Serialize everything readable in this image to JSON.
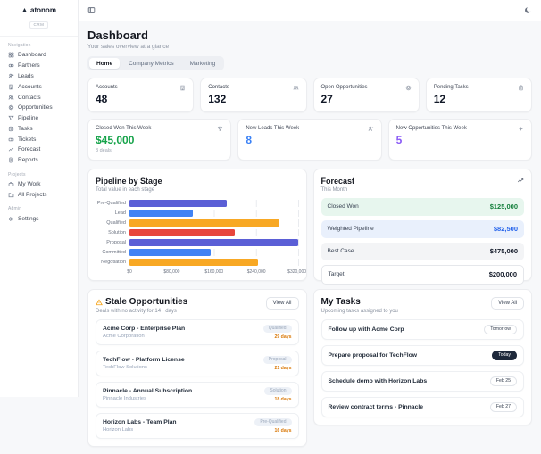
{
  "brand": {
    "name": "atonom",
    "tag": "CRM"
  },
  "sidebar": {
    "sections": [
      {
        "label": "Navigation",
        "items": [
          {
            "label": "Dashboard"
          },
          {
            "label": "Partners"
          },
          {
            "label": "Leads"
          },
          {
            "label": "Accounts"
          },
          {
            "label": "Contacts"
          },
          {
            "label": "Opportunities"
          },
          {
            "label": "Pipeline"
          },
          {
            "label": "Tasks"
          },
          {
            "label": "Tickets"
          },
          {
            "label": "Forecast"
          },
          {
            "label": "Reports"
          }
        ]
      },
      {
        "label": "Projects",
        "items": [
          {
            "label": "My Work"
          },
          {
            "label": "All Projects"
          }
        ]
      },
      {
        "label": "Admin",
        "items": [
          {
            "label": "Settings"
          }
        ]
      }
    ]
  },
  "header": {
    "title": "Dashboard",
    "subtitle": "Your sales overview at a glance",
    "tabs": [
      {
        "label": "Home",
        "active": true
      },
      {
        "label": "Company Metrics",
        "active": false
      },
      {
        "label": "Marketing",
        "active": false
      }
    ]
  },
  "stats": [
    {
      "label": "Accounts",
      "value": "48",
      "icon": "building-icon"
    },
    {
      "label": "Contacts",
      "value": "132",
      "icon": "users-icon"
    },
    {
      "label": "Open Opportunities",
      "value": "27",
      "icon": "target-icon"
    },
    {
      "label": "Pending Tasks",
      "value": "12",
      "icon": "clipboard-icon"
    }
  ],
  "weekly": [
    {
      "label": "Closed Won This Week",
      "value": "$45,000",
      "note": "3 deals",
      "color": "#16a34a",
      "icon": "trophy-icon"
    },
    {
      "label": "New Leads This Week",
      "value": "8",
      "note": "",
      "color": "#3b82f6",
      "icon": "user-plus-icon"
    },
    {
      "label": "New Opportunities This Week",
      "value": "5",
      "note": "",
      "color": "#8b5cf6",
      "icon": "sparkles-icon"
    }
  ],
  "chart_data": {
    "type": "bar",
    "orientation": "horizontal",
    "title": "Pipeline by Stage",
    "subtitle": "Total value in each stage",
    "categories": [
      "Pre-Qualified",
      "Lead",
      "Qualified",
      "Solution",
      "Proposal",
      "Committed",
      "Negotiation"
    ],
    "values": [
      185000,
      120000,
      285000,
      200000,
      320000,
      155000,
      245000
    ],
    "colors": [
      "#5b5fd6",
      "#4183f4",
      "#f8a824",
      "#e8463c",
      "#5b5fd6",
      "#4183f4",
      "#f8a824"
    ],
    "xlim": [
      0,
      320000
    ],
    "xticks": [
      "$0",
      "$80,000",
      "$160,000",
      "$240,000",
      "$320,000"
    ],
    "grid": true,
    "legend": false
  },
  "forecast": {
    "title": "Forecast",
    "subtitle": "This Month",
    "rows": [
      {
        "label": "Closed Won",
        "value": "$125,000",
        "bg": "#e7f6ee",
        "fg": "#15803d",
        "bordered": false
      },
      {
        "label": "Weighted Pipeline",
        "value": "$82,500",
        "bg": "#e9f0fc",
        "fg": "#2563eb",
        "bordered": false
      },
      {
        "label": "Best Case",
        "value": "$475,000",
        "bg": "#f3f4f6",
        "fg": "#111827",
        "bordered": false
      },
      {
        "label": "Target",
        "value": "$200,000",
        "bg": "#ffffff",
        "fg": "#111827",
        "bordered": true
      }
    ]
  },
  "stale": {
    "title": "Stale Opportunities",
    "subtitle": "Deals with no activity for 14+ days",
    "view_all": "View All",
    "items": [
      {
        "title": "Acme Corp - Enterprise Plan",
        "company": "Acme Corporation",
        "stage": "Qualified",
        "age": "29 days"
      },
      {
        "title": "TechFlow - Platform License",
        "company": "TechFlow Solutions",
        "stage": "Proposal",
        "age": "21 days"
      },
      {
        "title": "Pinnacle - Annual Subscription",
        "company": "Pinnacle Industries",
        "stage": "Solution",
        "age": "18 days"
      },
      {
        "title": "Horizon Labs - Team Plan",
        "company": "Horizon Labs",
        "stage": "Pre-Qualified",
        "age": "16 days"
      }
    ]
  },
  "tasks": {
    "title": "My Tasks",
    "subtitle": "Upcoming tasks assigned to you",
    "view_all": "View All",
    "items": [
      {
        "title": "Follow up with Acme Corp",
        "due": "Tomorrow",
        "style": "outline"
      },
      {
        "title": "Prepare proposal for TechFlow",
        "due": "Today",
        "style": "filled"
      },
      {
        "title": "Schedule demo with Horizon Labs",
        "due": "Feb 25",
        "style": "outline"
      },
      {
        "title": "Review contract terms - Pinnacle",
        "due": "Feb 27",
        "style": "outline"
      }
    ]
  }
}
